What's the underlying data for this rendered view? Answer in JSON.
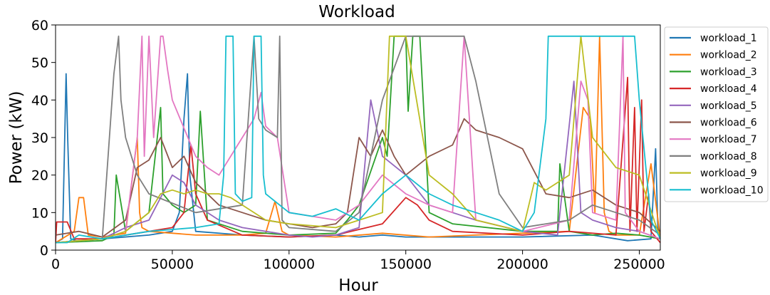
{
  "chart_data": {
    "type": "line",
    "title": "Workload",
    "xlabel": "Hour",
    "ylabel": "Power (kW)",
    "xlim": [
      0,
      259000
    ],
    "ylim": [
      0,
      60
    ],
    "xticks": [
      0,
      50000,
      100000,
      150000,
      200000,
      250000
    ],
    "yticks": [
      0,
      10,
      20,
      30,
      40,
      50,
      60
    ],
    "grid": false,
    "legend_position": "right",
    "series": [
      {
        "name": "workload_1",
        "color": "#1f77b4",
        "x": [
          0,
          3000,
          4500,
          5200,
          6500,
          9000,
          20000,
          40000,
          50000,
          53000,
          55000,
          56500,
          57500,
          60000,
          80000,
          100000,
          120000,
          130000,
          140000,
          150000,
          170000,
          200000,
          230000,
          245000,
          255000,
          257000,
          258000,
          259000
        ],
        "y": [
          2,
          3,
          47,
          30,
          3,
          2.5,
          3,
          4,
          5,
          10,
          35,
          47,
          20,
          5,
          4,
          3.5,
          4,
          3.5,
          4,
          3.5,
          3.5,
          3.5,
          4,
          2.5,
          3,
          27,
          5,
          3
        ]
      },
      {
        "name": "workload_2",
        "color": "#ff7f0e",
        "x": [
          0,
          8000,
          10000,
          12000,
          14000,
          20000,
          30000,
          35000,
          36000,
          37000,
          40000,
          60000,
          80000,
          90000,
          94000,
          97000,
          100000,
          120000,
          140000,
          160000,
          180000,
          200000,
          220000,
          226000,
          229000,
          231000,
          233000,
          235000,
          237000,
          240000,
          250000,
          255000,
          259000
        ],
        "y": [
          2,
          5,
          14,
          14,
          4,
          3.5,
          4.5,
          30,
          10,
          6,
          5,
          4,
          4,
          4.5,
          13,
          5,
          4,
          3.5,
          4.5,
          3.5,
          4,
          4.5,
          5,
          38,
          35,
          10,
          57,
          10,
          5,
          4,
          4,
          23,
          3
        ]
      },
      {
        "name": "workload_3",
        "color": "#2ca02c",
        "x": [
          0,
          20000,
          25000,
          26000,
          30000,
          40000,
          45000,
          46000,
          50000,
          55000,
          60000,
          62000,
          65000,
          80000,
          100000,
          120000,
          125000,
          130000,
          140000,
          142000,
          145000,
          150000,
          151000,
          153000,
          156000,
          160000,
          170000,
          200000,
          215000,
          216000,
          220000,
          230000,
          240000,
          250000,
          259000
        ],
        "y": [
          2,
          2.5,
          4,
          20,
          5,
          10,
          38,
          15,
          12,
          10,
          12,
          37,
          8,
          5,
          4,
          4.5,
          8,
          12,
          30,
          25,
          57,
          57,
          37,
          57,
          57,
          10,
          7,
          5,
          5,
          23,
          5,
          4,
          4.5,
          4,
          3
        ]
      },
      {
        "name": "workload_4",
        "color": "#d62728",
        "x": [
          0,
          500,
          5000,
          8000,
          20000,
          40000,
          50000,
          55000,
          58000,
          60000,
          65000,
          80000,
          100000,
          120000,
          140000,
          150000,
          155000,
          160000,
          170000,
          200000,
          220000,
          240000,
          245000,
          246000,
          248000,
          249000,
          251000,
          252000,
          254000,
          255000,
          259000
        ],
        "y": [
          2,
          7.5,
          7.5,
          3,
          3,
          5,
          6,
          10,
          28,
          15,
          8,
          4,
          3.5,
          4,
          7,
          14,
          12,
          8,
          5,
          4,
          5,
          4,
          46,
          5,
          38,
          5,
          40,
          5,
          15,
          5,
          2
        ]
      },
      {
        "name": "workload_5",
        "color": "#9467bd",
        "x": [
          0,
          20000,
          30000,
          40000,
          50000,
          55000,
          60000,
          65000,
          70000,
          80000,
          90000,
          100000,
          110000,
          120000,
          130000,
          135000,
          140000,
          150000,
          160000,
          170000,
          180000,
          200000,
          215000,
          222000,
          225000,
          230000,
          240000,
          250000,
          259000
        ],
        "y": [
          2,
          3,
          6,
          8,
          20,
          18,
          12,
          10,
          8,
          6,
          5,
          4,
          3.5,
          4,
          6,
          40,
          25,
          20,
          12,
          10,
          8,
          5,
          4,
          45,
          10,
          8,
          6,
          5,
          3
        ]
      },
      {
        "name": "workload_6",
        "color": "#8c564b",
        "x": [
          0,
          10000,
          20000,
          30000,
          35000,
          40000,
          45000,
          50000,
          55000,
          60000,
          70000,
          80000,
          90000,
          100000,
          110000,
          120000,
          125000,
          130000,
          135000,
          140000,
          145000,
          150000,
          160000,
          170000,
          175000,
          180000,
          190000,
          200000,
          210000,
          220000,
          230000,
          240000,
          250000,
          259000
        ],
        "y": [
          4,
          5,
          3.5,
          8,
          22,
          24,
          30,
          22,
          25,
          18,
          12,
          10,
          8,
          7,
          6,
          7,
          10,
          30,
          25,
          32,
          25,
          20,
          25,
          28,
          35,
          32,
          30,
          27,
          15,
          14,
          16,
          12,
          10,
          5
        ]
      },
      {
        "name": "workload_7",
        "color": "#e377c2",
        "x": [
          0,
          20000,
          30000,
          35000,
          37000,
          38000,
          40000,
          42000,
          45000,
          46000,
          48000,
          50000,
          60000,
          65000,
          70000,
          80000,
          85000,
          88000,
          90000,
          95000,
          100000,
          110000,
          120000,
          130000,
          140000,
          150000,
          160000,
          170000,
          175000,
          180000,
          200000,
          220000,
          225000,
          228000,
          230000,
          240000,
          243000,
          244000,
          250000,
          259000
        ],
        "y": [
          2,
          3,
          5,
          30,
          57,
          25,
          57,
          30,
          57,
          57,
          48,
          40,
          25,
          22,
          20,
          30,
          35,
          42,
          33,
          30,
          10,
          9,
          8,
          12,
          20,
          15,
          12,
          10,
          57,
          8,
          5,
          8,
          45,
          40,
          10,
          8,
          57,
          10,
          5,
          3
        ]
      },
      {
        "name": "workload_8",
        "color": "#7f7f7f",
        "x": [
          0,
          20000,
          25000,
          27000,
          28000,
          30000,
          35000,
          40000,
          60000,
          80000,
          85000,
          87000,
          90000,
          95000,
          96000,
          97000,
          100000,
          120000,
          130000,
          140000,
          150000,
          155000,
          157000,
          160000,
          170000,
          175000,
          180000,
          190000,
          200000,
          220000,
          230000,
          240000,
          250000,
          259000
        ],
        "y": [
          2,
          3,
          47,
          57,
          40,
          30,
          20,
          15,
          10,
          12,
          57,
          35,
          32,
          30,
          57,
          8,
          6,
          5,
          10,
          40,
          57,
          57,
          57,
          57,
          57,
          57,
          45,
          15,
          6,
          8,
          12,
          10,
          8,
          4
        ]
      },
      {
        "name": "workload_9",
        "color": "#bcbd22",
        "x": [
          0,
          20000,
          30000,
          40000,
          45000,
          50000,
          55000,
          60000,
          65000,
          70000,
          75000,
          80000,
          90000,
          100000,
          120000,
          130000,
          140000,
          143000,
          145000,
          150000,
          160000,
          170000,
          180000,
          200000,
          205000,
          210000,
          220000,
          225000,
          230000,
          240000,
          250000,
          259000
        ],
        "y": [
          2,
          3,
          5,
          10,
          15,
          16,
          15,
          16,
          15,
          15,
          14,
          12,
          8,
          7,
          6,
          8,
          10,
          57,
          57,
          57,
          20,
          15,
          8,
          5,
          18,
          16,
          20,
          57,
          30,
          22,
          20,
          3
        ]
      },
      {
        "name": "workload_10",
        "color": "#17becf",
        "x": [
          0,
          5000,
          10000,
          20000,
          40000,
          60000,
          70000,
          72000,
          73000,
          76000,
          77000,
          80000,
          84000,
          85000,
          88000,
          89000,
          90000,
          100000,
          110000,
          120000,
          130000,
          140000,
          150000,
          160000,
          170000,
          180000,
          190000,
          200000,
          205000,
          210000,
          211000,
          212000,
          220000,
          230000,
          240000,
          248000,
          250000,
          255000,
          259000
        ],
        "y": [
          2,
          2,
          4,
          3,
          5,
          6,
          7,
          20,
          57,
          57,
          15,
          13,
          14,
          57,
          57,
          20,
          15,
          10,
          9,
          11,
          8,
          15,
          20,
          15,
          12,
          10,
          8,
          5,
          10,
          35,
          57,
          57,
          57,
          57,
          57,
          57,
          40,
          8,
          3
        ]
      }
    ]
  }
}
